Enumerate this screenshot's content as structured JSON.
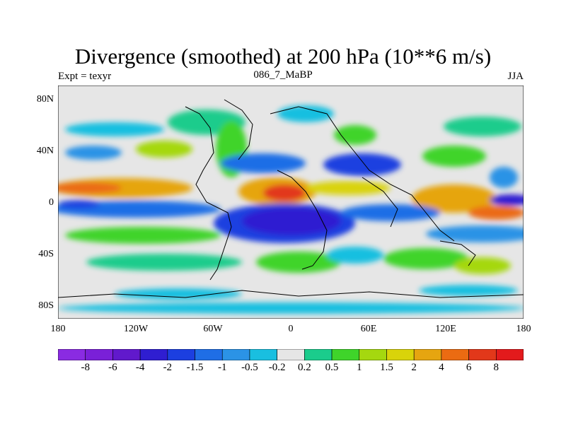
{
  "header": {
    "title": "Divergence (smoothed) at 200 hPa (10**6 m/s)",
    "left_label": "Expt = texyr",
    "center_label": "086_7_MaBP",
    "right_label": "JJA"
  },
  "map_axes": {
    "lat_labels": [
      "80N",
      "40N",
      "0",
      "40S",
      "80S"
    ],
    "lon_labels": [
      "180",
      "120W",
      "60W",
      "0",
      "60E",
      "120E",
      "180"
    ]
  },
  "colorbar": {
    "labels": [
      "-8",
      "-6",
      "-4",
      "-2",
      "-1.5",
      "-1",
      "-0.5",
      "-0.2",
      "0.2",
      "0.5",
      "1",
      "1.5",
      "2",
      "4",
      "6",
      "8"
    ],
    "colors": [
      "#8a2be2",
      "#7a20d8",
      "#6119cc",
      "#2f1ed1",
      "#1c3fe0",
      "#1f6ee6",
      "#2b93e6",
      "#19bfe0",
      "#e6e6e6",
      "#1bcc8c",
      "#3fd42a",
      "#a5d80f",
      "#d9d30a",
      "#e6a510",
      "#eb6b12",
      "#e2381a",
      "#e31a1c"
    ]
  },
  "chart_data": {
    "type": "heatmap",
    "title": "Divergence (smoothed) at 200 hPa (10**6 m/s)",
    "season": "JJA",
    "experiment": "texyr",
    "lon_range": [
      -180,
      180
    ],
    "lat_range": [
      -90,
      90
    ],
    "levels": [
      -8,
      -6,
      -4,
      -2,
      -1.5,
      -1,
      -0.5,
      -0.2,
      0.2,
      0.5,
      1,
      1.5,
      2,
      4,
      6,
      8
    ]
  }
}
